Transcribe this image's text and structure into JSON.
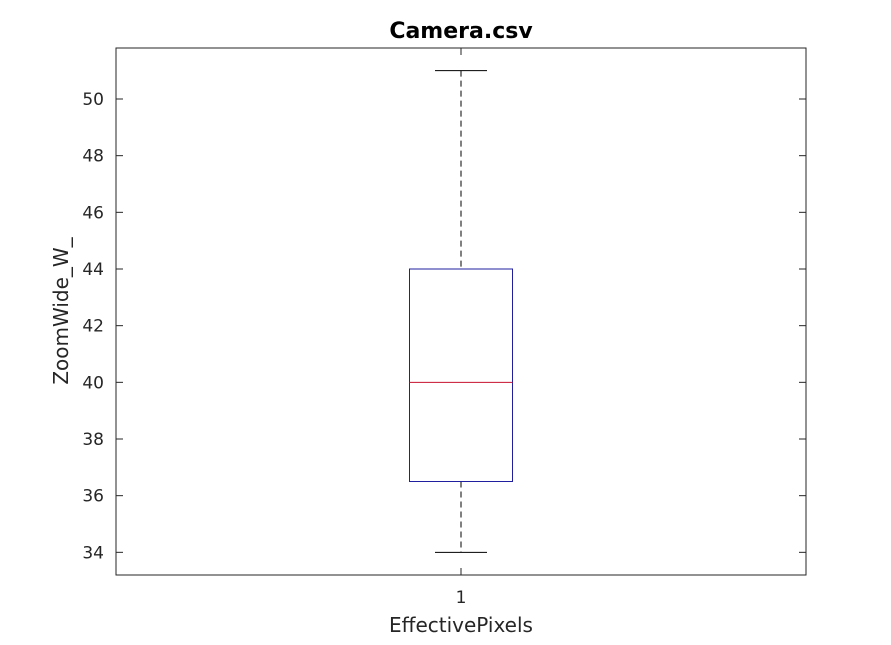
{
  "chart_data": {
    "type": "box",
    "title": "Camera.csv",
    "xlabel": "EffectivePixels",
    "ylabel": "ZoomWide_W_",
    "categories": [
      "1"
    ],
    "ylim": [
      33.2,
      51.8
    ],
    "yticks": [
      34,
      36,
      38,
      40,
      42,
      44,
      46,
      48,
      50
    ],
    "ytick_labels": [
      "34",
      "36",
      "38",
      "40",
      "42",
      "44",
      "46",
      "48",
      "50"
    ],
    "boxes": [
      {
        "category": "1",
        "whisker_low": 34,
        "q1": 36.5,
        "median": 40,
        "q3": 44,
        "whisker_high": 51
      }
    ],
    "colors": {
      "box": "#1f1fa0",
      "median": "#c8102e",
      "whisker": "#000000",
      "axes": "#262626"
    },
    "grid": false
  }
}
